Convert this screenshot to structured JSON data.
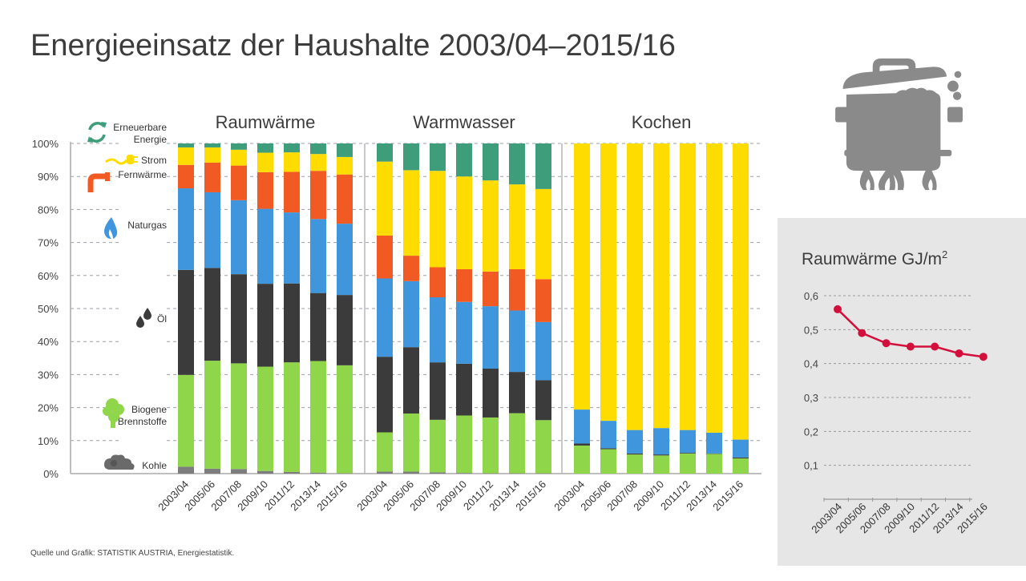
{
  "title": "Energieeinsatz der Haushalte 2003/04–2015/16",
  "source": "Quelle und Grafik: STATISTIK AUSTRIA, Energiestatistik.",
  "icons": {
    "hero": "cooking-pot-icon"
  },
  "colors": {
    "Kohle": "#7d7d7d",
    "Biogene Brennstoffe": "#8fd64b",
    "Öl": "#3b3b3b",
    "Naturgas": "#3f96dc",
    "Fernwärme": "#f15a22",
    "Strom": "#ffdc00",
    "Erneuerbare Energie": "#3e9e7b",
    "line": "#d3103b"
  },
  "legend": [
    {
      "key": "Erneuerbare Energie",
      "lines": [
        "Erneuerbare",
        "Energie"
      ],
      "icon": "recycle-arrows-icon"
    },
    {
      "key": "Strom",
      "lines": [
        "Strom"
      ],
      "icon": "plug-icon"
    },
    {
      "key": "Fernwärme",
      "lines": [
        "Fernwärme"
      ],
      "icon": "pipe-icon"
    },
    {
      "key": "Naturgas",
      "lines": [
        "Naturgas"
      ],
      "icon": "flame-icon"
    },
    {
      "key": "Öl",
      "lines": [
        "Öl"
      ],
      "icon": "oil-drops-icon"
    },
    {
      "key": "Biogene Brennstoffe",
      "lines": [
        "Biogene",
        "Brennstoffe"
      ],
      "icon": "tree-icon"
    },
    {
      "key": "Kohle",
      "lines": [
        "Kohle"
      ],
      "icon": "coal-icon"
    }
  ],
  "chart_data": [
    {
      "type": "bar",
      "stacked": true,
      "percent": true,
      "title": "Energieeinsatz der Haushalte 2003/04–2015/16",
      "ylim": [
        0,
        100
      ],
      "yticks": [
        "0%",
        "10%",
        "20%",
        "30%",
        "40%",
        "50%",
        "60%",
        "70%",
        "80%",
        "90%",
        "100%"
      ],
      "grid": true,
      "legend_position": "left",
      "categories": [
        "2003/04",
        "2005/06",
        "2007/08",
        "2009/10",
        "2011/12",
        "2013/14",
        "2015/16"
      ],
      "series_order": [
        "Kohle",
        "Biogene Brennstoffe",
        "Öl",
        "Naturgas",
        "Fernwärme",
        "Strom",
        "Erneuerbare Energie"
      ],
      "panels": [
        {
          "name": "Raumwärme",
          "series": [
            {
              "name": "Kohle",
              "values": [
                2.1,
                1.5,
                1.4,
                0.8,
                0.5,
                0.3,
                0.1
              ]
            },
            {
              "name": "Biogene Brennstoffe",
              "values": [
                27.8,
                32.7,
                32.0,
                31.6,
                33.2,
                33.8,
                32.7
              ]
            },
            {
              "name": "Öl",
              "values": [
                31.8,
                28.1,
                27.0,
                25.1,
                23.9,
                20.6,
                21.3
              ]
            },
            {
              "name": "Naturgas",
              "values": [
                24.7,
                22.9,
                22.4,
                22.7,
                21.5,
                22.4,
                21.6
              ]
            },
            {
              "name": "Fernwärme",
              "values": [
                7.1,
                9.0,
                10.5,
                11.1,
                12.3,
                14.6,
                14.9
              ]
            },
            {
              "name": "Strom",
              "values": [
                5.3,
                4.6,
                4.8,
                5.9,
                5.9,
                5.1,
                5.3
              ]
            },
            {
              "name": "Erneuerbare Energie",
              "values": [
                1.2,
                1.2,
                1.9,
                2.8,
                2.7,
                3.2,
                4.1
              ]
            }
          ]
        },
        {
          "name": "Warmwasser",
          "series": [
            {
              "name": "Kohle",
              "values": [
                0.6,
                0.6,
                0.4,
                0.2,
                0.1,
                0.1,
                0.1
              ]
            },
            {
              "name": "Biogene Brennstoffe",
              "values": [
                11.9,
                17.6,
                15.9,
                17.4,
                16.9,
                18.2,
                16.1
              ]
            },
            {
              "name": "Öl",
              "values": [
                22.9,
                20.1,
                17.4,
                15.7,
                14.8,
                12.5,
                12.1
              ]
            },
            {
              "name": "Naturgas",
              "values": [
                23.7,
                20.0,
                19.7,
                18.7,
                18.9,
                18.6,
                17.6
              ]
            },
            {
              "name": "Fernwärme",
              "values": [
                13.0,
                7.7,
                9.1,
                9.9,
                10.5,
                12.5,
                13.0
              ]
            },
            {
              "name": "Strom",
              "values": [
                22.4,
                25.9,
                29.2,
                28.1,
                27.6,
                25.7,
                27.3
              ]
            },
            {
              "name": "Erneuerbare Energie",
              "values": [
                5.5,
                8.1,
                8.3,
                10.0,
                11.2,
                12.4,
                13.8
              ]
            }
          ]
        },
        {
          "name": "Kochen",
          "series": [
            {
              "name": "Kohle",
              "values": [
                0,
                0,
                0,
                0,
                0,
                0,
                0
              ]
            },
            {
              "name": "Biogene Brennstoffe",
              "values": [
                8.5,
                7.4,
                5.8,
                5.5,
                6.1,
                6.0,
                4.6
              ]
            },
            {
              "name": "Öl",
              "values": [
                0.6,
                0.3,
                0.3,
                0.3,
                0.2,
                0.1,
                0.3
              ]
            },
            {
              "name": "Naturgas",
              "values": [
                10.3,
                8.3,
                7.1,
                8.0,
                6.9,
                6.3,
                5.4
              ]
            },
            {
              "name": "Fernwärme",
              "values": [
                0,
                0,
                0,
                0,
                0,
                0,
                0
              ]
            },
            {
              "name": "Strom",
              "values": [
                80.6,
                84.0,
                86.8,
                86.2,
                86.8,
                87.6,
                89.7
              ]
            },
            {
              "name": "Erneuerbare Energie",
              "values": [
                0,
                0,
                0,
                0,
                0,
                0,
                0
              ]
            }
          ]
        }
      ]
    },
    {
      "type": "line",
      "title": "Raumwärme GJ/m²",
      "title_main": "Raumwärme GJ/m",
      "title_sup": "2",
      "categories": [
        "2003/04",
        "2005/06",
        "2007/08",
        "2009/10",
        "2011/12",
        "2013/14",
        "2015/16"
      ],
      "series": [
        {
          "name": "Raumwärme GJ/m²",
          "values": [
            0.56,
            0.49,
            0.46,
            0.45,
            0.45,
            0.43,
            0.42
          ]
        }
      ],
      "ylim": [
        0,
        0.6
      ],
      "yticks": [
        "0,1",
        "0,2",
        "0,3",
        "0,4",
        "0,5",
        "0,6"
      ],
      "ytick_values": [
        0.1,
        0.2,
        0.3,
        0.4,
        0.5,
        0.6
      ],
      "grid": true
    }
  ]
}
